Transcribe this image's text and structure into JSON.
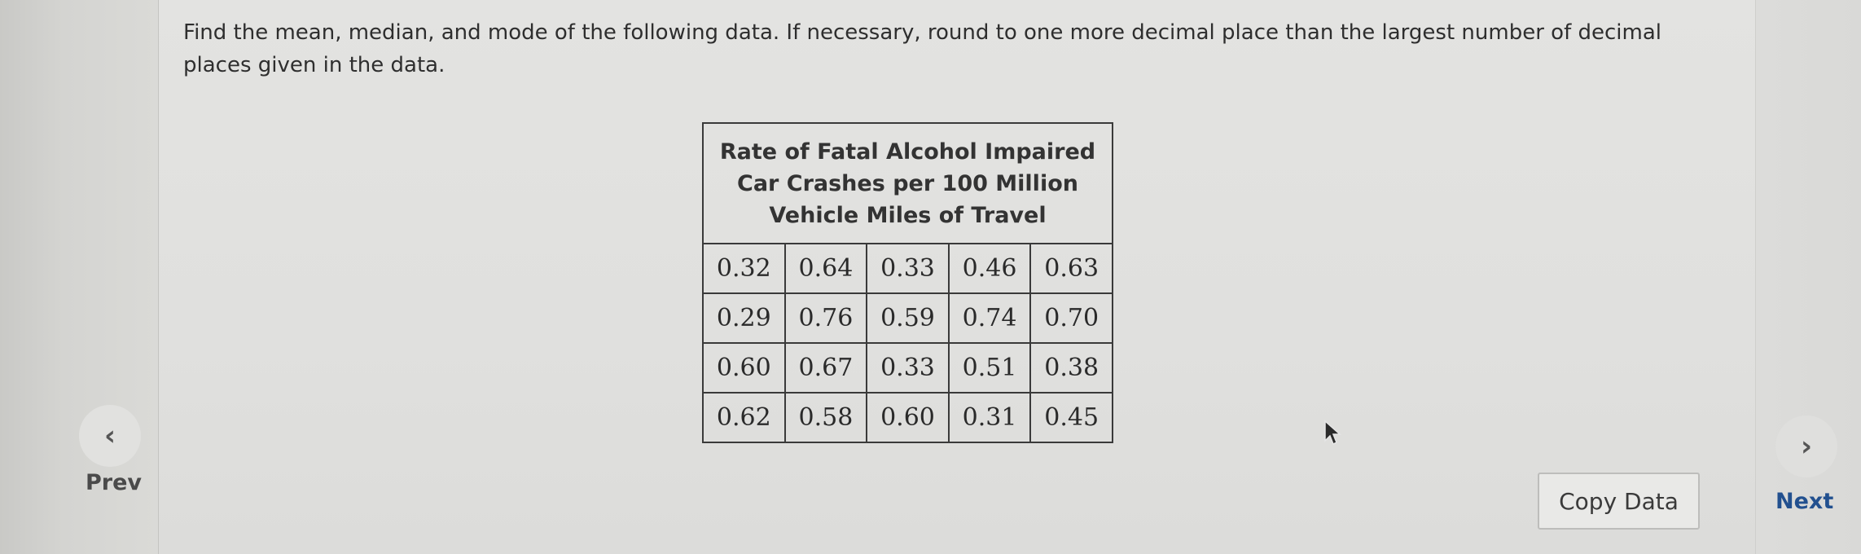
{
  "question": {
    "text": "Find the mean, median, and mode of the following data. If necessary, round to one more decimal place than the largest number of decimal places given in the data."
  },
  "table": {
    "title": "Rate of Fatal Alcohol Impaired Car Crashes per 100 Million Vehicle Miles of Travel",
    "rows": [
      [
        "0.32",
        "0.64",
        "0.33",
        "0.46",
        "0.63"
      ],
      [
        "0.29",
        "0.76",
        "0.59",
        "0.74",
        "0.70"
      ],
      [
        "0.60",
        "0.67",
        "0.33",
        "0.51",
        "0.38"
      ],
      [
        "0.62",
        "0.58",
        "0.60",
        "0.31",
        "0.45"
      ]
    ]
  },
  "nav": {
    "prev_icon": "‹",
    "prev_label": "Prev",
    "next_icon": "›",
    "next_label": "Next",
    "prev_icon_name": "chevron-left-icon",
    "next_icon_name": "chevron-right-icon"
  },
  "actions": {
    "copy_label": "Copy Data"
  },
  "colors": {
    "next_label": "#22508f",
    "table_border": "#3a3a3a"
  }
}
